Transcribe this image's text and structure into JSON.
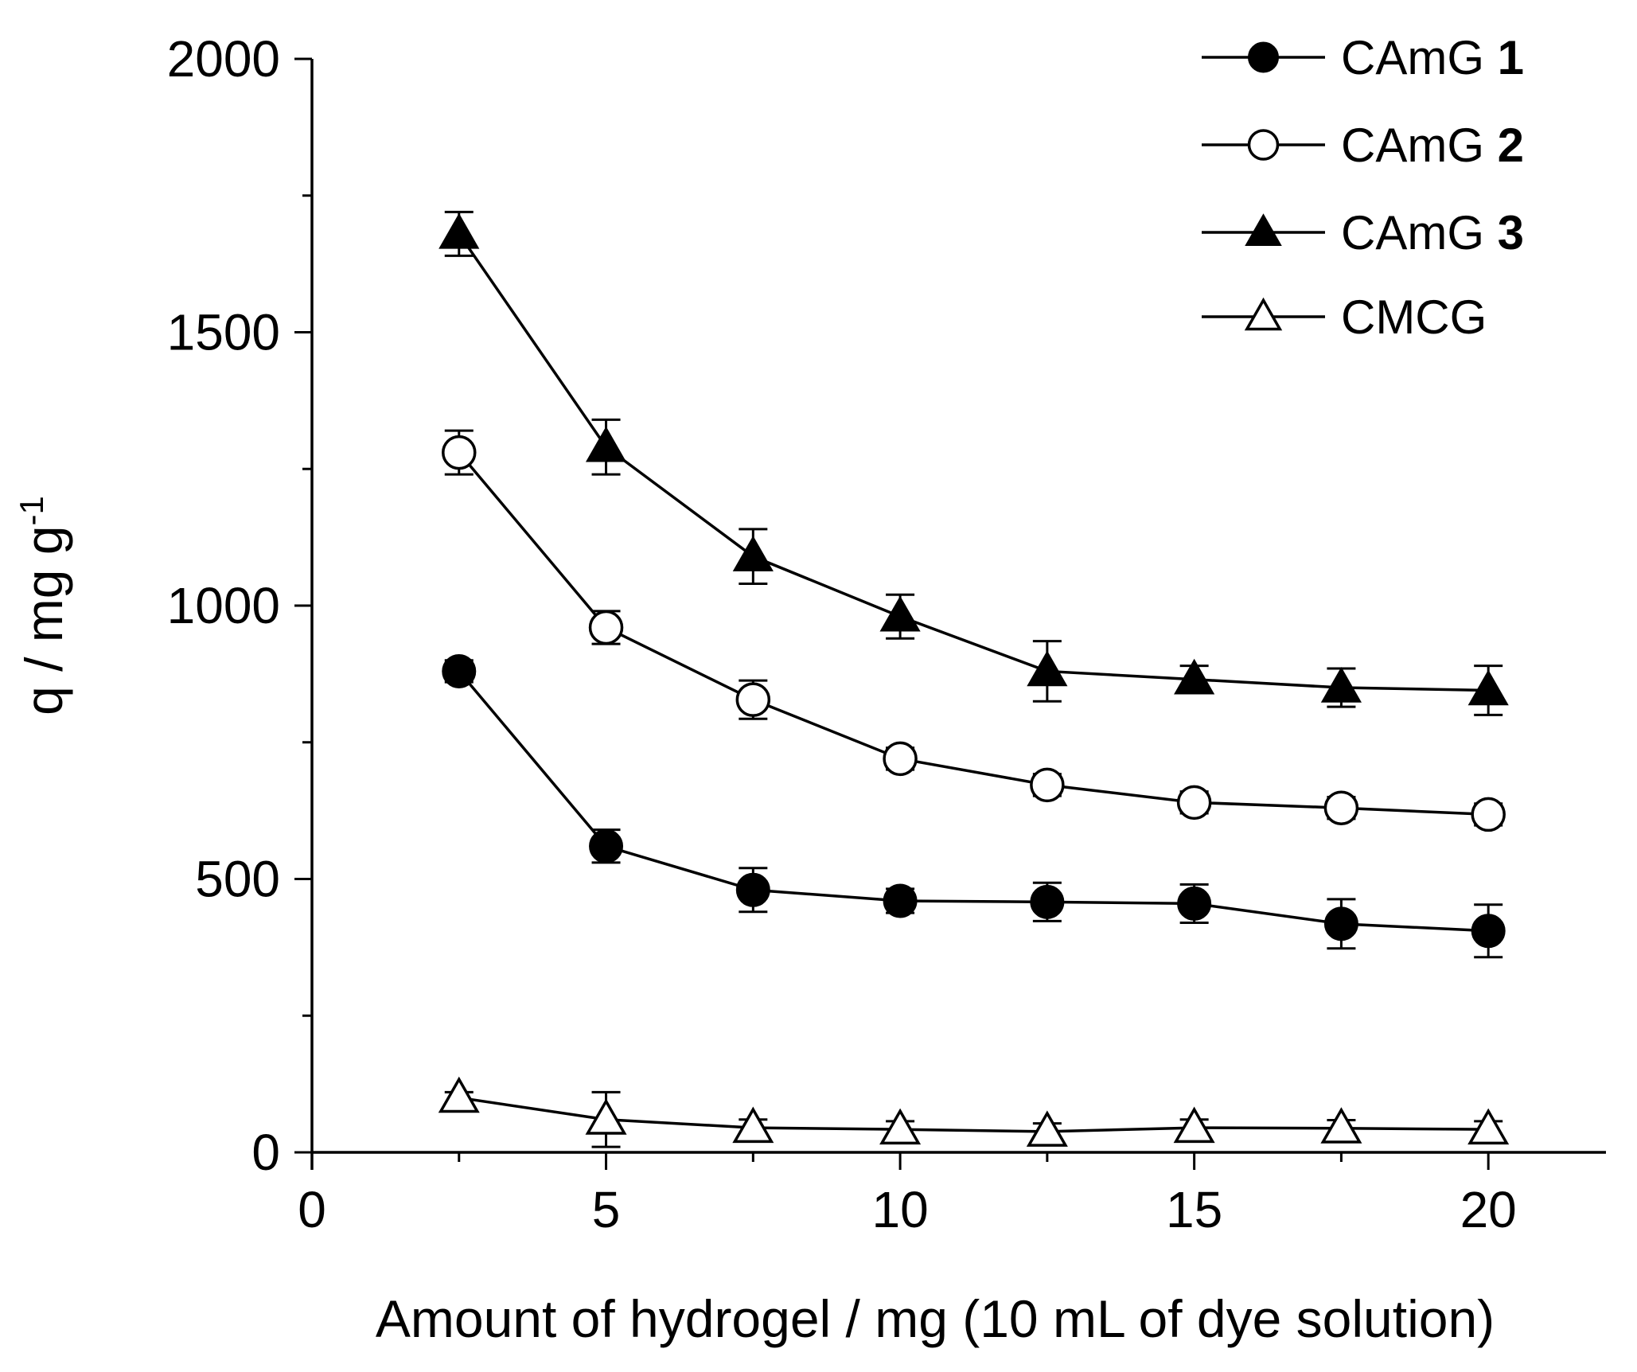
{
  "chart_data": {
    "type": "line",
    "title": "",
    "xlabel": "Amount of hydrogel / mg (10 mL of dye solution)",
    "ylabel": "q / mg g",
    "ylabel_superscript": "-1",
    "xlim": [
      0,
      22
    ],
    "ylim": [
      0,
      2000
    ],
    "x_ticks": [
      0,
      5,
      10,
      15,
      20
    ],
    "x_tick_labels": [
      "0",
      "5",
      "10",
      "15",
      "20"
    ],
    "y_ticks": [
      0,
      500,
      1000,
      1500,
      2000
    ],
    "y_tick_labels": [
      "0",
      "500",
      "1000",
      "1500",
      "2000"
    ],
    "grid": false,
    "legend_position": "top-right",
    "x": [
      2.5,
      5,
      7.5,
      10,
      12.5,
      15,
      17.5,
      20
    ],
    "series": [
      {
        "name": "CAmG 1",
        "name_text": "CAmG ",
        "name_number": "1",
        "marker": "filled-circle",
        "values": [
          880,
          560,
          480,
          460,
          458,
          455,
          418,
          405
        ],
        "errors": [
          20,
          30,
          40,
          22,
          35,
          35,
          45,
          48
        ]
      },
      {
        "name": "CAmG 2",
        "name_text": "CAmG ",
        "name_number": "2",
        "marker": "open-circle",
        "values": [
          1280,
          960,
          828,
          720,
          672,
          640,
          630,
          618
        ],
        "errors": [
          40,
          30,
          35,
          20,
          20,
          20,
          20,
          20
        ]
      },
      {
        "name": "CAmG 3",
        "name_text": "CAmG ",
        "name_number": "3",
        "marker": "filled-triangle",
        "values": [
          1680,
          1290,
          1090,
          980,
          880,
          865,
          850,
          845
        ],
        "errors": [
          40,
          50,
          50,
          40,
          55,
          25,
          35,
          45
        ]
      },
      {
        "name": "CMCG",
        "name_text": "CMCG",
        "name_number": "",
        "marker": "open-triangle",
        "values": [
          100,
          60,
          45,
          42,
          38,
          45,
          44,
          42
        ],
        "errors": [
          10,
          50,
          15,
          15,
          15,
          15,
          15,
          15
        ]
      }
    ]
  }
}
